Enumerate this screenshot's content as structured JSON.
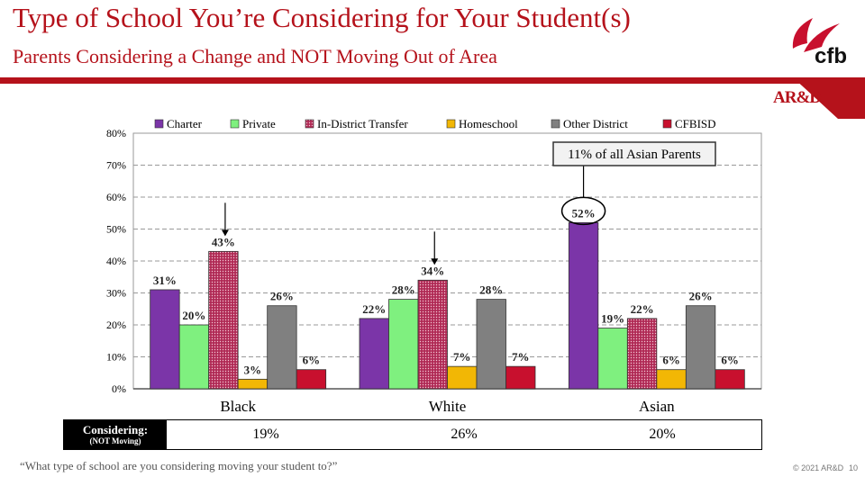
{
  "slide": {
    "title": "Type of School You’re Considering for Your Student(s)",
    "subtitle": "Parents Considering a Change and NOT Moving Out of Area",
    "brand_logo": "cfb",
    "ard_logo": "AR&D",
    "question": "“What type of school are you considering moving your student to?”",
    "copyright": "© 2021 AR&D",
    "page_number": "10",
    "accent_color": "#b5121b"
  },
  "considering_table": {
    "header_line1": "Considering:",
    "header_line2": "(NOT Moving)",
    "values": [
      "19%",
      "26%",
      "20%"
    ]
  },
  "chart_data": {
    "type": "bar",
    "categories": [
      "Black",
      "White",
      "Asian"
    ],
    "series": [
      {
        "name": "Charter",
        "color": "#7b35a8",
        "values": [
          31,
          22,
          52
        ]
      },
      {
        "name": "Private",
        "color": "#7ff07f",
        "values": [
          20,
          28,
          19
        ]
      },
      {
        "name": "In-District Transfer",
        "color": "#b02a55",
        "pattern": "dotted",
        "values": [
          43,
          34,
          22
        ]
      },
      {
        "name": "Homeschool",
        "color": "#f2b705",
        "values": [
          3,
          7,
          6
        ]
      },
      {
        "name": "Other District",
        "color": "#808080",
        "values": [
          26,
          28,
          26
        ]
      },
      {
        "name": "CFBISD",
        "color": "#c8102e",
        "values": [
          6,
          7,
          6
        ]
      }
    ],
    "ylim": [
      0,
      80
    ],
    "yticks": [
      0,
      10,
      20,
      30,
      40,
      50,
      60,
      70,
      80
    ],
    "ytick_suffix": "%",
    "grid": true,
    "legend": "top",
    "annotations": [
      {
        "text": "11% of all Asian Parents",
        "category": "Asian",
        "series": "Charter",
        "type": "callout-box-circle"
      },
      {
        "category": "Black",
        "series": "In-District Transfer",
        "type": "arrow"
      },
      {
        "category": "White",
        "series": "In-District Transfer",
        "type": "arrow"
      }
    ]
  }
}
